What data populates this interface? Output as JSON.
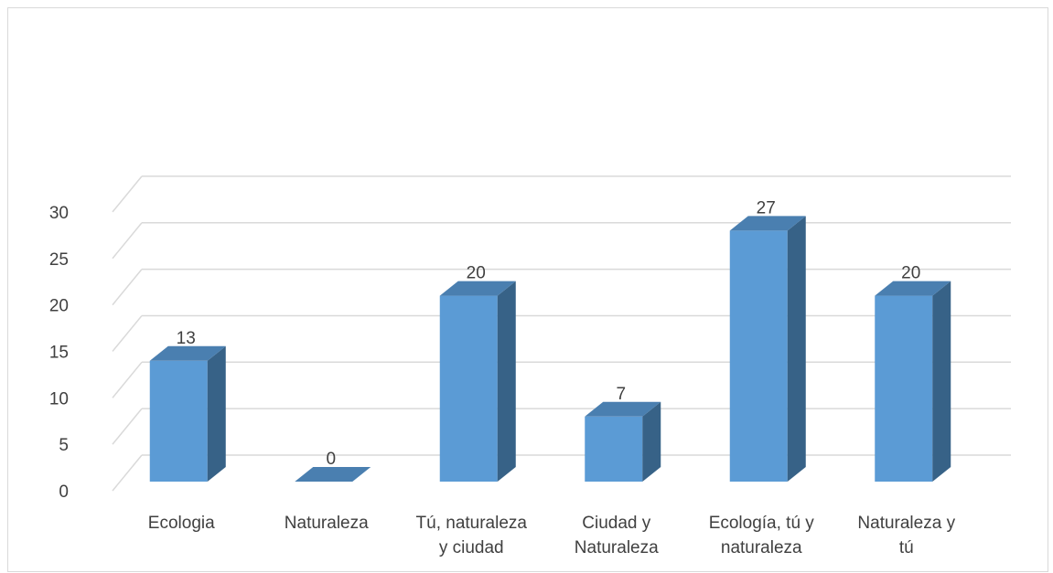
{
  "chart_data": {
    "type": "bar",
    "style": "3d-clustered-column",
    "categories": [
      [
        "Ecologia"
      ],
      [
        "Naturaleza"
      ],
      [
        "Tú, naturaleza",
        "y ciudad"
      ],
      [
        "Ciudad y",
        "Naturaleza"
      ],
      [
        "Ecología, tú y",
        "naturaleza"
      ],
      [
        "Naturaleza y",
        "tú"
      ]
    ],
    "values": [
      13,
      0,
      20,
      7,
      27,
      20
    ],
    "ylim": [
      0,
      30
    ],
    "yticks": [
      0,
      5,
      10,
      15,
      20,
      25,
      30
    ],
    "grid": true,
    "legend": "none",
    "colors": {
      "front": "#5b9bd5",
      "side": "#376287",
      "top": "#4a7fb0",
      "grid": "#d9d9d9",
      "text": "#404040"
    }
  }
}
